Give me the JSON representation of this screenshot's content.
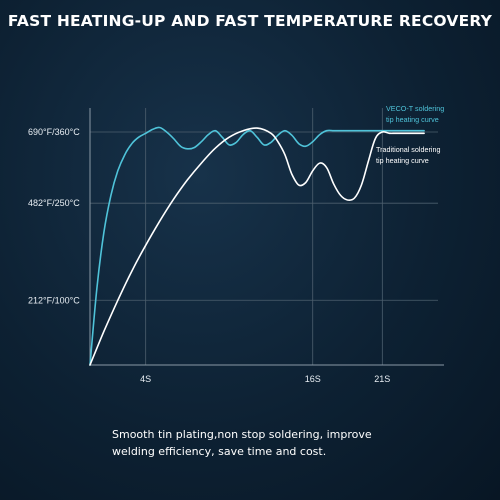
{
  "title": "FAST HEATING-UP AND FAST TEMPERATURE RECOVERY",
  "caption": {
    "line1": "Smooth tin plating,non stop soldering, improve",
    "line2": "welding efficiency, save time and cost."
  },
  "chart_data": {
    "type": "line",
    "x_ticks": [
      {
        "label": "4S",
        "value": 4
      },
      {
        "label": "16S",
        "value": 16
      },
      {
        "label": "21S",
        "value": 21
      }
    ],
    "y_ticks": [
      {
        "label": "212°F/100°C",
        "value": 100
      },
      {
        "label": "482°F/250°C",
        "value": 250
      },
      {
        "label": "690°F/360°C",
        "value": 360
      }
    ],
    "xlim": [
      0,
      25
    ],
    "ylim": [
      0,
      360
    ],
    "grid": true,
    "series": [
      {
        "name": "VECO-T soldering tip heating curve",
        "legend_lines": [
          "VECO-T soldering",
          "tip heating curve"
        ],
        "color": "#4fc3d9",
        "x": [
          0,
          0.5,
          1,
          1.5,
          2,
          2.5,
          3,
          3.5,
          4,
          4.5,
          5,
          5.5,
          6,
          6.5,
          7,
          7.5,
          8,
          8.5,
          9,
          9.5,
          10,
          10.5,
          11,
          11.5,
          12,
          12.5,
          13,
          13.5,
          14,
          14.5,
          15,
          15.5,
          16,
          16.5,
          17,
          17.5,
          18,
          18.5,
          19,
          19.5,
          20,
          21,
          22,
          23,
          24
        ],
        "y": [
          0,
          120,
          205,
          262,
          300,
          325,
          342,
          352,
          358,
          364,
          367,
          360,
          350,
          338,
          334,
          336,
          345,
          356,
          362,
          352,
          340,
          344,
          356,
          362,
          352,
          340,
          344,
          355,
          362,
          355,
          342,
          338,
          345,
          356,
          362,
          362,
          362,
          362,
          362,
          362,
          362,
          362,
          362,
          362,
          362
        ]
      },
      {
        "name": "Traditional soldering tip heating curve",
        "legend_lines": [
          "Traditional soldering",
          "tip heating curve"
        ],
        "color": "#ffffff",
        "x": [
          0,
          1,
          2,
          3,
          4,
          5,
          6,
          7,
          8,
          9,
          10,
          11,
          12,
          13,
          13.5,
          14,
          14.5,
          15,
          15.5,
          16,
          16.5,
          17,
          17.5,
          18,
          18.5,
          19,
          19.5,
          20,
          20.5,
          21,
          21.5,
          22,
          23,
          24
        ],
        "y": [
          0,
          52,
          100,
          145,
          185,
          222,
          256,
          286,
          312,
          335,
          352,
          362,
          366,
          358,
          345,
          325,
          295,
          278,
          282,
          300,
          312,
          305,
          280,
          262,
          255,
          258,
          278,
          315,
          350,
          360,
          358,
          358,
          358,
          358
        ]
      }
    ]
  }
}
